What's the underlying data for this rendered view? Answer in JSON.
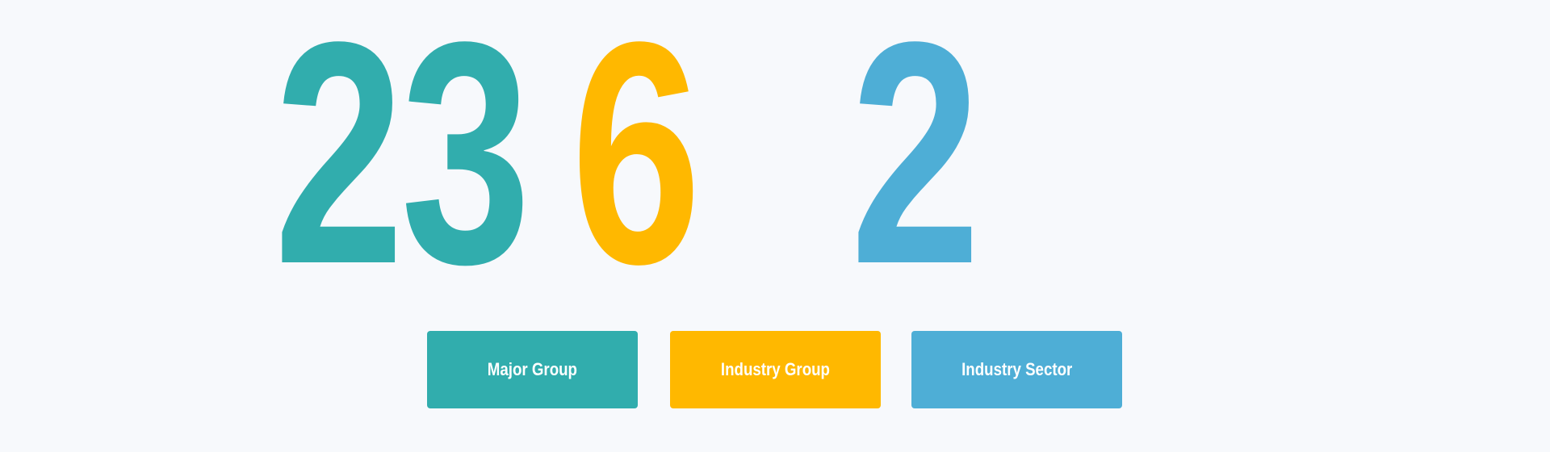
{
  "code": {
    "digits": [
      {
        "value": "2",
        "color": "#31ADAD"
      },
      {
        "value": "3",
        "color": "#31ADAD"
      },
      {
        "value": "6",
        "color": "#FFB800"
      },
      {
        "value": "2",
        "color": "#4EAED6"
      }
    ]
  },
  "buttons": [
    {
      "label": "Major Group",
      "color": "#31ADAD"
    },
    {
      "label": "Industry Group",
      "color": "#FFB800"
    },
    {
      "label": "Industry Sector",
      "color": "#4EAED6"
    }
  ],
  "colors": {
    "background": "#F7F9FC"
  }
}
